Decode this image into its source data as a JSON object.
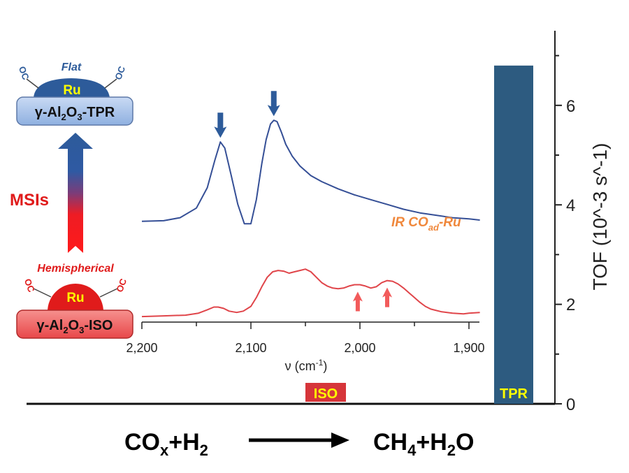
{
  "chart_data": [
    {
      "type": "bar",
      "categories": [
        "ISO",
        "TPR"
      ],
      "values": [
        0,
        6.8
      ],
      "ylabel": "TOF",
      "ylabel_unit": "(10^-3 s^-1)",
      "ylim": [
        0,
        8
      ],
      "yticks": [
        "0",
        "2",
        "4",
        "6"
      ],
      "colors": {
        "ISO": "#d6353a",
        "TPR": "#2d5b80"
      },
      "label_color": "#ffff00",
      "axis_position": "right",
      "grid": false
    },
    {
      "type": "line",
      "xlabel": "ν (cm⁻¹)",
      "xlabel_parts": {
        "main": "ν (cm",
        "sup": "-1",
        "tail": ")"
      },
      "xlim": [
        2200,
        1890
      ],
      "xticks": [
        "2,200",
        "2,100",
        "2,000",
        "1,900"
      ],
      "xtick_values": [
        2200,
        2100,
        2000,
        1900
      ],
      "annotation": {
        "main": "IR CO",
        "sub": "ad",
        "tail": "-Ru",
        "color": "#f0883c"
      },
      "series": [
        {
          "color": "#354f96",
          "x": [
            2200,
            2180,
            2165,
            2150,
            2140,
            2133,
            2128,
            2124,
            2118,
            2112,
            2106,
            2100,
            2095,
            2090,
            2086,
            2082,
            2079,
            2076,
            2072,
            2068,
            2062,
            2055,
            2045,
            2035,
            2020,
            2005,
            1990,
            1975,
            1960,
            1945,
            1930,
            1915,
            1900,
            1890
          ],
          "y": [
            0.24,
            0.245,
            0.27,
            0.35,
            0.52,
            0.75,
            0.9,
            0.85,
            0.62,
            0.38,
            0.22,
            0.22,
            0.42,
            0.72,
            0.92,
            1.05,
            1.08,
            1.07,
            0.98,
            0.88,
            0.78,
            0.7,
            0.62,
            0.57,
            0.51,
            0.46,
            0.42,
            0.38,
            0.34,
            0.31,
            0.29,
            0.27,
            0.26,
            0.25
          ]
        },
        {
          "color": "#e0454a",
          "x": [
            2200,
            2180,
            2160,
            2148,
            2140,
            2134,
            2130,
            2125,
            2120,
            2113,
            2107,
            2100,
            2095,
            2090,
            2085,
            2080,
            2075,
            2070,
            2065,
            2060,
            2055,
            2050,
            2045,
            2040,
            2035,
            2030,
            2025,
            2020,
            2015,
            2010,
            2005,
            2000,
            1995,
            1990,
            1985,
            1980,
            1975,
            1970,
            1965,
            1960,
            1955,
            1950,
            1945,
            1940,
            1935,
            1925,
            1915,
            1905,
            1900,
            1890
          ],
          "y": [
            0.02,
            0.03,
            0.04,
            0.07,
            0.12,
            0.16,
            0.16,
            0.14,
            0.1,
            0.08,
            0.1,
            0.17,
            0.3,
            0.46,
            0.6,
            0.68,
            0.7,
            0.69,
            0.66,
            0.68,
            0.7,
            0.72,
            0.68,
            0.6,
            0.52,
            0.47,
            0.44,
            0.43,
            0.44,
            0.47,
            0.49,
            0.49,
            0.47,
            0.44,
            0.46,
            0.52,
            0.55,
            0.54,
            0.5,
            0.44,
            0.37,
            0.3,
            0.23,
            0.17,
            0.13,
            0.09,
            0.07,
            0.06,
            0.07,
            0.08
          ]
        }
      ],
      "arrows": {
        "down": [
          {
            "x": 2128
          },
          {
            "x": 2079
          }
        ],
        "up": [
          {
            "x": 2002
          },
          {
            "x": 1975
          }
        ]
      }
    }
  ],
  "schematic": {
    "top": {
      "style_label": "Flat",
      "metal": "Ru",
      "support": {
        "pre": "γ-Al",
        "sub1": "2",
        "mid": "O",
        "sub2": "3",
        "post": "-TPR"
      }
    },
    "bottom": {
      "style_label": "Hemispherical",
      "metal": "Ru",
      "support": {
        "pre": "γ-Al",
        "sub1": "2",
        "mid": "O",
        "sub2": "3",
        "post": "-ISO"
      }
    },
    "arrow_label": "MSIs",
    "ligand": "OC",
    "colors": {
      "blue": "#2d5b9a",
      "red": "#e01b1b",
      "metal_text": "#ffff00"
    }
  },
  "reaction": {
    "reactants": {
      "a": "CO",
      "a_sub": "x",
      "b": "+H",
      "b_sub": "2"
    },
    "products": {
      "a": "CH",
      "a_sub": "4",
      "b": "+H",
      "b_sub": "2",
      "c": "O"
    }
  }
}
